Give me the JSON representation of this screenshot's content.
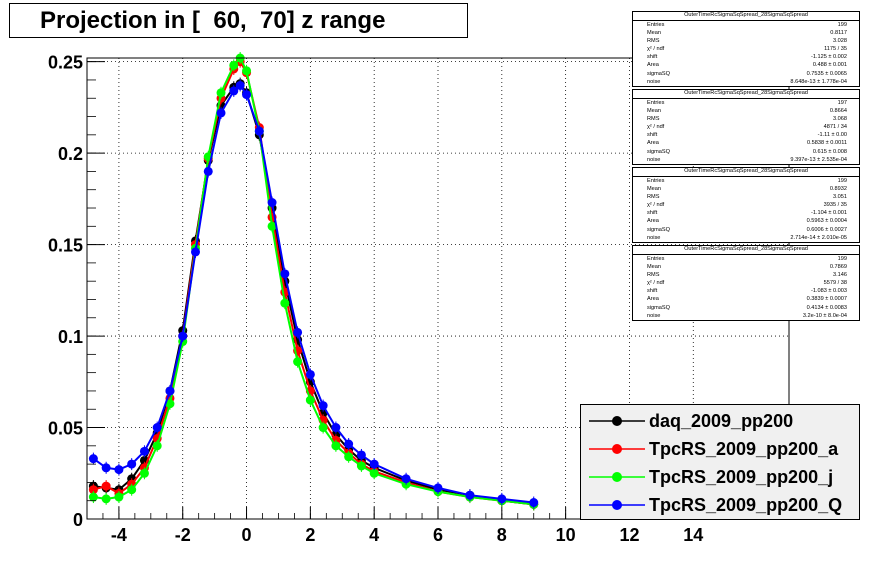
{
  "page_title": "Projection in [  60,  70] z range",
  "chart_data": {
    "type": "scatter",
    "title": "Projection in [  60,  70] z range",
    "xlabel": "",
    "ylabel": "",
    "xlim": [
      -5,
      17
    ],
    "ylim": [
      0,
      0.252
    ],
    "x_ticks": [
      -4,
      -2,
      0,
      2,
      4,
      6,
      8,
      10,
      12,
      14
    ],
    "x_tick_labels": [
      "-4",
      "-2",
      "0",
      "2",
      "4",
      "6",
      "8",
      "10",
      "12",
      "14"
    ],
    "y_ticks": [
      0,
      0.05,
      0.1,
      0.15,
      0.2,
      0.25
    ],
    "y_tick_labels": [
      "0",
      "0.05",
      "0.1",
      "0.15",
      "0.2",
      "0.25"
    ],
    "grid": true,
    "legend_position": "bottom-right",
    "series": [
      {
        "name": "daq_2009_pp200",
        "color": "#000000",
        "x": [
          -4.8,
          -4.4,
          -4.0,
          -3.6,
          -3.2,
          -2.8,
          -2.4,
          -2.0,
          -1.6,
          -1.2,
          -0.8,
          -0.4,
          -0.2,
          0.0,
          0.4,
          0.8,
          1.2,
          1.6,
          2.0,
          2.4,
          2.8,
          3.2,
          3.6,
          4.0,
          5.0,
          6.0,
          7.0,
          8.0,
          9.0
        ],
        "y": [
          0.018,
          0.017,
          0.016,
          0.022,
          0.032,
          0.047,
          0.07,
          0.103,
          0.152,
          0.196,
          0.226,
          0.236,
          0.238,
          0.233,
          0.21,
          0.17,
          0.13,
          0.098,
          0.075,
          0.058,
          0.046,
          0.038,
          0.032,
          0.028,
          0.021,
          0.016,
          0.013,
          0.01,
          0.008
        ]
      },
      {
        "name": "TpcRS_2009_pp200_a",
        "color": "#ff0000",
        "x": [
          -4.8,
          -4.4,
          -4.0,
          -3.6,
          -3.2,
          -2.8,
          -2.4,
          -2.0,
          -1.6,
          -1.2,
          -0.8,
          -0.4,
          -0.2,
          0.0,
          0.4,
          0.8,
          1.2,
          1.6,
          2.0,
          2.4,
          2.8,
          3.2,
          3.6,
          4.0,
          5.0,
          6.0,
          7.0,
          8.0,
          9.0
        ],
        "y": [
          0.016,
          0.018,
          0.014,
          0.019,
          0.028,
          0.044,
          0.066,
          0.1,
          0.15,
          0.197,
          0.23,
          0.246,
          0.25,
          0.244,
          0.214,
          0.165,
          0.124,
          0.092,
          0.07,
          0.054,
          0.043,
          0.036,
          0.03,
          0.026,
          0.02,
          0.015,
          0.012,
          0.01,
          0.008
        ]
      },
      {
        "name": "TpcRS_2009_pp200_j",
        "color": "#00ff00",
        "x": [
          -4.8,
          -4.4,
          -4.0,
          -3.6,
          -3.2,
          -2.8,
          -2.4,
          -2.0,
          -1.6,
          -1.2,
          -0.8,
          -0.4,
          -0.2,
          0.0,
          0.4,
          0.8,
          1.2,
          1.6,
          2.0,
          2.4,
          2.8,
          3.2,
          3.6,
          4.0,
          5.0,
          6.0,
          7.0,
          8.0,
          9.0
        ],
        "y": [
          0.012,
          0.011,
          0.012,
          0.016,
          0.025,
          0.04,
          0.063,
          0.097,
          0.148,
          0.198,
          0.233,
          0.248,
          0.252,
          0.245,
          0.212,
          0.16,
          0.118,
          0.086,
          0.065,
          0.05,
          0.04,
          0.034,
          0.029,
          0.025,
          0.019,
          0.015,
          0.012,
          0.01,
          0.008
        ]
      },
      {
        "name": "TpcRS_2009_pp200_Q",
        "color": "#0000ff",
        "x": [
          -4.8,
          -4.4,
          -4.0,
          -3.6,
          -3.2,
          -2.8,
          -2.4,
          -2.0,
          -1.6,
          -1.2,
          -0.8,
          -0.4,
          -0.2,
          0.0,
          0.4,
          0.8,
          1.2,
          1.6,
          2.0,
          2.4,
          2.8,
          3.2,
          3.6,
          4.0,
          5.0,
          6.0,
          7.0,
          8.0,
          9.0
        ],
        "y": [
          0.033,
          0.028,
          0.027,
          0.03,
          0.037,
          0.05,
          0.07,
          0.1,
          0.146,
          0.19,
          0.222,
          0.234,
          0.237,
          0.232,
          0.212,
          0.173,
          0.134,
          0.102,
          0.079,
          0.062,
          0.05,
          0.041,
          0.035,
          0.03,
          0.022,
          0.017,
          0.013,
          0.011,
          0.009
        ]
      }
    ]
  },
  "stats_boxes": [
    {
      "title": "OuterTimeRcSigmaSqSpread_28SigmaSqSpread",
      "rows": [
        [
          "Entries",
          "199"
        ],
        [
          "Mean",
          "0.8117"
        ],
        [
          "RMS",
          "3.028"
        ],
        [
          "χ² / ndf",
          "1175 / 35"
        ],
        [
          "shift",
          "-1.125 ± 0.002"
        ],
        [
          "Area",
          "0.488 ± 0.001"
        ],
        [
          "sigmaSQ",
          "0.7535 ± 0.0065"
        ],
        [
          "noise",
          "8.648e-13 ± 1.778e-04"
        ]
      ]
    },
    {
      "title": "OuterTimeRcSigmaSqSpread_28SigmaSqSpread",
      "rows": [
        [
          "Entries",
          "197"
        ],
        [
          "Mean",
          "0.8664"
        ],
        [
          "RMS",
          "3.068"
        ],
        [
          "χ² / ndf",
          "4871 / 34"
        ],
        [
          "shift",
          "-1.11 ± 0.00"
        ],
        [
          "Area",
          "0.5838 ± 0.0011"
        ],
        [
          "sigmaSQ",
          "0.615 ± 0.008"
        ],
        [
          "noise",
          "9.397e-13 ± 2.535e-04"
        ]
      ]
    },
    {
      "title": "OuterTimeRcSigmaSqSpread_28SigmaSqSpread",
      "rows": [
        [
          "Entries",
          "199"
        ],
        [
          "Mean",
          "0.8932"
        ],
        [
          "RMS",
          "3.051"
        ],
        [
          "χ² / ndf",
          "3935 / 35"
        ],
        [
          "shift",
          "-1.104 ± 0.001"
        ],
        [
          "Area",
          "0.5963 ± 0.0004"
        ],
        [
          "sigmaSQ",
          "0.6006 ± 0.0027"
        ],
        [
          "noise",
          "2.714e-14 ± 2.010e-05"
        ]
      ]
    },
    {
      "title": "OuterTimeRcSigmaSqSpread_28SigmaSqSpread",
      "rows": [
        [
          "Entries",
          "199"
        ],
        [
          "Mean",
          "0.7869"
        ],
        [
          "RMS",
          "3.146"
        ],
        [
          "χ² / ndf",
          "5579 / 38"
        ],
        [
          "shift",
          "-1.083 ± 0.003"
        ],
        [
          "Area",
          "0.3839 ± 0.0007"
        ],
        [
          "sigmaSQ",
          "0.4134 ± 0.0083"
        ],
        [
          "noise",
          "3.2e-10 ± 8.0e-04"
        ]
      ]
    }
  ]
}
